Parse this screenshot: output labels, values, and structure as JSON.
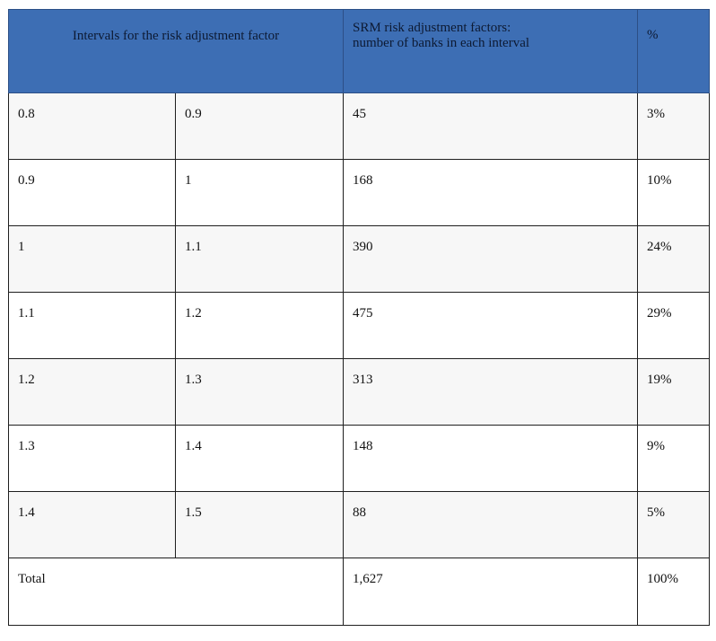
{
  "table": {
    "headers": {
      "interval": "Intervals for the risk adjustment factor",
      "count_line1": "SRM risk adjustment factors:",
      "count_line2": "number of  banks in each interval",
      "percent": "%"
    },
    "rows": [
      {
        "from": "0.8",
        "to": "0.9",
        "banks": "45",
        "percent": "3%"
      },
      {
        "from": "0.9",
        "to": "1",
        "banks": "168",
        "percent": "10%"
      },
      {
        "from": "1",
        "to": "1.1",
        "banks": "390",
        "percent": "24%"
      },
      {
        "from": "1.1",
        "to": "1.2",
        "banks": "475",
        "percent": "29%"
      },
      {
        "from": "1.2",
        "to": "1.3",
        "banks": "313",
        "percent": "19%"
      },
      {
        "from": "1.3",
        "to": "1.4",
        "banks": "148",
        "percent": "9%"
      },
      {
        "from": "1.4",
        "to": "1.5",
        "banks": "88",
        "percent": "5%"
      }
    ],
    "total": {
      "label": "Total",
      "banks": "1,627",
      "percent": "100%"
    }
  },
  "colors": {
    "header_bg": "#3d6eb4",
    "row_shade": "#f7f7f7",
    "border": "#1f1f1f"
  }
}
